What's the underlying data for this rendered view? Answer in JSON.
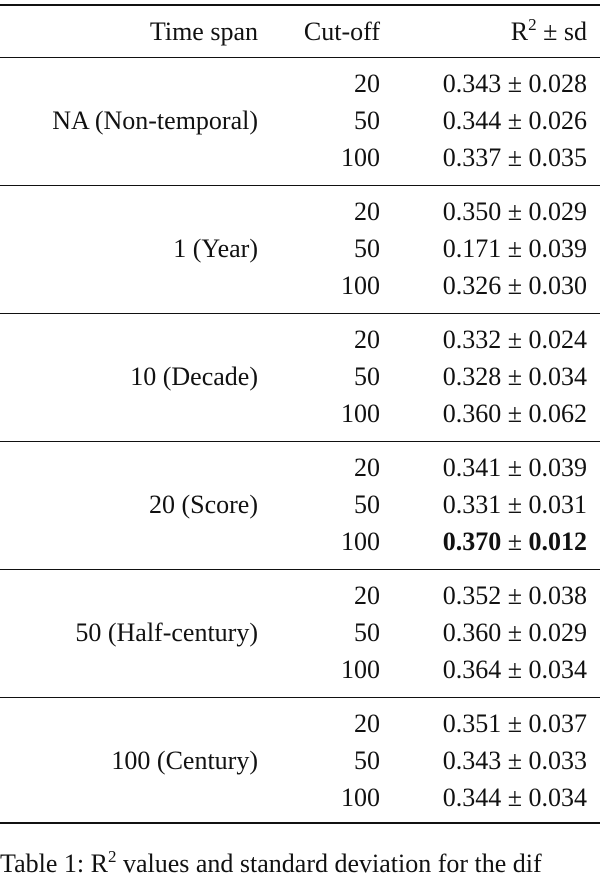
{
  "table": {
    "header": {
      "time_span": "Time span",
      "cutoff": "Cut-off",
      "r2_base": "R",
      "r2_sup": "2",
      "r2_rest": "± sd"
    },
    "plus_minus": "±",
    "groups": [
      {
        "time_span": "NA (Non-temporal)",
        "rows": [
          {
            "cutoff": "20",
            "mean": "0.343",
            "sd": "0.028"
          },
          {
            "cutoff": "50",
            "mean": "0.344",
            "sd": "0.026"
          },
          {
            "cutoff": "100",
            "mean": "0.337",
            "sd": "0.035"
          }
        ]
      },
      {
        "time_span": "1 (Year)",
        "rows": [
          {
            "cutoff": "20",
            "mean": "0.350",
            "sd": "0.029"
          },
          {
            "cutoff": "50",
            "mean": "0.171",
            "sd": "0.039"
          },
          {
            "cutoff": "100",
            "mean": "0.326",
            "sd": "0.030"
          }
        ]
      },
      {
        "time_span": "10 (Decade)",
        "rows": [
          {
            "cutoff": "20",
            "mean": "0.332",
            "sd": "0.024"
          },
          {
            "cutoff": "50",
            "mean": "0.328",
            "sd": "0.034"
          },
          {
            "cutoff": "100",
            "mean": "0.360",
            "sd": "0.062"
          }
        ]
      },
      {
        "time_span": "20 (Score)",
        "rows": [
          {
            "cutoff": "20",
            "mean": "0.341",
            "sd": "0.039"
          },
          {
            "cutoff": "50",
            "mean": "0.331",
            "sd": "0.031"
          },
          {
            "cutoff": "100",
            "mean": "0.370",
            "sd": "0.012",
            "bold": true
          }
        ]
      },
      {
        "time_span": "50 (Half-century)",
        "rows": [
          {
            "cutoff": "20",
            "mean": "0.352",
            "sd": "0.038"
          },
          {
            "cutoff": "50",
            "mean": "0.360",
            "sd": "0.029"
          },
          {
            "cutoff": "100",
            "mean": "0.364",
            "sd": "0.034"
          }
        ]
      },
      {
        "time_span": "100 (Century)",
        "rows": [
          {
            "cutoff": "20",
            "mean": "0.351",
            "sd": "0.037"
          },
          {
            "cutoff": "50",
            "mean": "0.343",
            "sd": "0.033"
          },
          {
            "cutoff": "100",
            "mean": "0.344",
            "sd": "0.034"
          }
        ]
      }
    ]
  },
  "caption": {
    "before": "Table 1: R",
    "sup": "2",
    "after": " values and standard deviation for the dif"
  }
}
